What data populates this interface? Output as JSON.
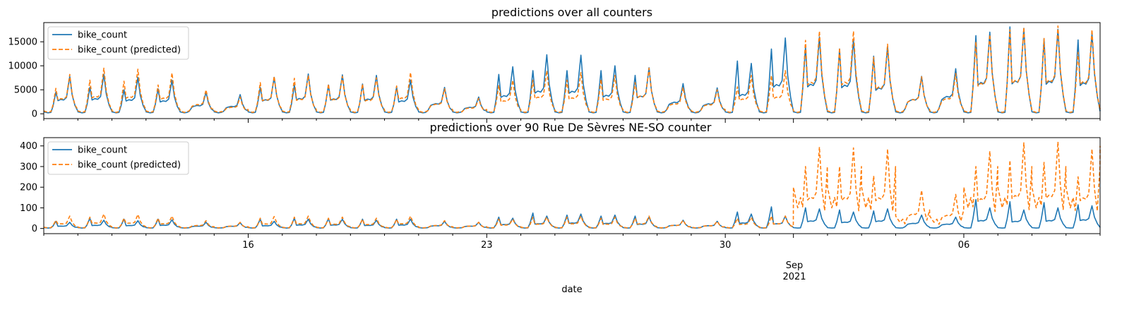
{
  "chart_data": [
    {
      "type": "line",
      "title": "predictions over all counters",
      "xlabel": "",
      "ylabel": "",
      "xlim": [
        "2021-08-10",
        "2021-09-10"
      ],
      "ylim": [
        -1000,
        19000
      ],
      "y_ticks": [
        0,
        5000,
        10000,
        15000
      ],
      "y_tick_labels": [
        "0",
        "5000",
        "10000",
        "15000"
      ],
      "legend": {
        "position": "top-left",
        "entries": [
          "bike_count",
          "bike_count (predicted)"
        ]
      },
      "grid": false,
      "series": [
        {
          "name": "bike_count",
          "color": "#1f77b4",
          "style": "solid",
          "daily": [
            {
              "date": "2021-08-10",
              "am": 4500,
              "pm": 7800,
              "min": 200
            },
            {
              "date": "2021-08-11",
              "am": 5500,
              "pm": 8200,
              "min": 200
            },
            {
              "date": "2021-08-12",
              "am": 5000,
              "pm": 7600,
              "min": 200
            },
            {
              "date": "2021-08-13",
              "am": 5200,
              "pm": 7000,
              "min": 200
            },
            {
              "date": "2021-08-14",
              "am": 0,
              "pm": 4500,
              "min": 200
            },
            {
              "date": "2021-08-15",
              "am": 0,
              "pm": 4000,
              "min": 200
            },
            {
              "date": "2021-08-16",
              "am": 5500,
              "pm": 7600,
              "min": 200
            },
            {
              "date": "2021-08-17",
              "am": 6000,
              "pm": 8300,
              "min": 200
            },
            {
              "date": "2021-08-18",
              "am": 6000,
              "pm": 8100,
              "min": 200
            },
            {
              "date": "2021-08-19",
              "am": 6200,
              "pm": 8000,
              "min": 200
            },
            {
              "date": "2021-08-20",
              "am": 5600,
              "pm": 7000,
              "min": 200
            },
            {
              "date": "2021-08-21",
              "am": 0,
              "pm": 5500,
              "min": 200
            },
            {
              "date": "2021-08-22",
              "am": 0,
              "pm": 3500,
              "min": 200
            },
            {
              "date": "2021-08-23",
              "am": 8200,
              "pm": 9800,
              "min": 200
            },
            {
              "date": "2021-08-24",
              "am": 9000,
              "pm": 12300,
              "min": 200
            },
            {
              "date": "2021-08-25",
              "am": 9000,
              "pm": 12200,
              "min": 200
            },
            {
              "date": "2021-08-26",
              "am": 9000,
              "pm": 10000,
              "min": 200
            },
            {
              "date": "2021-08-27",
              "am": 8000,
              "pm": 9600,
              "min": 200
            },
            {
              "date": "2021-08-28",
              "am": 0,
              "pm": 6300,
              "min": 200
            },
            {
              "date": "2021-08-29",
              "am": 0,
              "pm": 5400,
              "min": 200
            },
            {
              "date": "2021-08-30",
              "am": 11000,
              "pm": 10500,
              "min": 200
            },
            {
              "date": "2021-08-31",
              "am": 13500,
              "pm": 15800,
              "min": 200
            },
            {
              "date": "2021-09-01",
              "am": 14000,
              "pm": 16000,
              "min": 200
            },
            {
              "date": "2021-09-02",
              "am": 13500,
              "pm": 15500,
              "min": 200
            },
            {
              "date": "2021-09-03",
              "am": 12000,
              "pm": 14000,
              "min": 200
            },
            {
              "date": "2021-09-04",
              "am": 0,
              "pm": 7800,
              "min": 200
            },
            {
              "date": "2021-09-05",
              "am": 0,
              "pm": 9400,
              "min": 200
            },
            {
              "date": "2021-09-06",
              "am": 16300,
              "pm": 17000,
              "min": 200
            },
            {
              "date": "2021-09-07",
              "am": 18100,
              "pm": 17800,
              "min": 200
            },
            {
              "date": "2021-09-08",
              "am": 15600,
              "pm": 17600,
              "min": 200
            },
            {
              "date": "2021-09-09",
              "am": 15400,
              "pm": 16800,
              "min": 200
            }
          ]
        },
        {
          "name": "bike_count (predicted)",
          "color": "#ff7f0e",
          "style": "dashed",
          "daily": [
            {
              "date": "2021-08-10",
              "am": 5300,
              "pm": 8200,
              "min": 300
            },
            {
              "date": "2021-08-11",
              "am": 7000,
              "pm": 9500,
              "min": 300
            },
            {
              "date": "2021-08-12",
              "am": 6800,
              "pm": 9300,
              "min": 300
            },
            {
              "date": "2021-08-13",
              "am": 6000,
              "pm": 8500,
              "min": 300
            },
            {
              "date": "2021-08-14",
              "am": 0,
              "pm": 5000,
              "min": 300
            },
            {
              "date": "2021-08-15",
              "am": 0,
              "pm": 3500,
              "min": 300
            },
            {
              "date": "2021-08-16",
              "am": 6500,
              "pm": 7800,
              "min": 300
            },
            {
              "date": "2021-08-17",
              "am": 7400,
              "pm": 8000,
              "min": 300
            },
            {
              "date": "2021-08-18",
              "am": 6200,
              "pm": 7800,
              "min": 300
            },
            {
              "date": "2021-08-19",
              "am": 6200,
              "pm": 7500,
              "min": 300
            },
            {
              "date": "2021-08-20",
              "am": 5800,
              "pm": 8600,
              "min": 300
            },
            {
              "date": "2021-08-21",
              "am": 0,
              "pm": 5200,
              "min": 300
            },
            {
              "date": "2021-08-22",
              "am": 0,
              "pm": 3200,
              "min": 300
            },
            {
              "date": "2021-08-23",
              "am": 6000,
              "pm": 7000,
              "min": 300
            },
            {
              "date": "2021-08-24",
              "am": 7000,
              "pm": 9000,
              "min": 300
            },
            {
              "date": "2021-08-25",
              "am": 7000,
              "pm": 8600,
              "min": 300
            },
            {
              "date": "2021-08-26",
              "am": 7200,
              "pm": 8000,
              "min": 300
            },
            {
              "date": "2021-08-27",
              "am": 6500,
              "pm": 9500,
              "min": 300
            },
            {
              "date": "2021-08-28",
              "am": 0,
              "pm": 5500,
              "min": 300
            },
            {
              "date": "2021-08-29",
              "am": 0,
              "pm": 5000,
              "min": 300
            },
            {
              "date": "2021-08-30",
              "am": 5600,
              "pm": 8000,
              "min": 300
            },
            {
              "date": "2021-08-31",
              "am": 8000,
              "pm": 9000,
              "min": 300
            },
            {
              "date": "2021-09-01",
              "am": 15300,
              "pm": 17200,
              "min": 300
            },
            {
              "date": "2021-09-02",
              "am": 13700,
              "pm": 17200,
              "min": 300
            },
            {
              "date": "2021-09-03",
              "am": 11800,
              "pm": 14500,
              "min": 300
            },
            {
              "date": "2021-09-04",
              "am": 0,
              "pm": 7700,
              "min": 300
            },
            {
              "date": "2021-09-05",
              "am": 0,
              "pm": 8400,
              "min": 300
            },
            {
              "date": "2021-09-06",
              "am": 15000,
              "pm": 16500,
              "min": 300
            },
            {
              "date": "2021-09-07",
              "am": 17500,
              "pm": 18000,
              "min": 300
            },
            {
              "date": "2021-09-08",
              "am": 15700,
              "pm": 18300,
              "min": 300
            },
            {
              "date": "2021-09-09",
              "am": 12800,
              "pm": 17500,
              "min": 300
            }
          ]
        }
      ]
    },
    {
      "type": "line",
      "title": "predictions over 90 Rue De Sèvres NE-SO counter",
      "xlabel": "date",
      "ylabel": "",
      "xlim": [
        "2021-08-10",
        "2021-09-10"
      ],
      "ylim": [
        -25,
        440
      ],
      "y_ticks": [
        0,
        100,
        200,
        300,
        400
      ],
      "y_tick_labels": [
        "0",
        "100",
        "200",
        "300",
        "400"
      ],
      "x_ticks": [
        {
          "date": "2021-08-16",
          "label": "16"
        },
        {
          "date": "2021-08-23",
          "label": "23"
        },
        {
          "date": "2021-08-30",
          "label": "30"
        },
        {
          "date": "2021-09-06",
          "label": "06"
        }
      ],
      "x_secondary_label": {
        "date": "2021-09-01",
        "lines": [
          "Sep",
          "2021"
        ]
      },
      "legend": {
        "position": "top-left",
        "entries": [
          "bike_count",
          "bike_count (predicted)"
        ]
      },
      "grid": false,
      "series": [
        {
          "name": "bike_count",
          "color": "#1f77b4",
          "style": "solid",
          "daily": [
            {
              "date": "2021-08-10",
              "am": 35,
              "pm": 30,
              "min": 2
            },
            {
              "date": "2021-08-11",
              "am": 50,
              "pm": 40,
              "min": 2
            },
            {
              "date": "2021-08-12",
              "am": 45,
              "pm": 38,
              "min": 2
            },
            {
              "date": "2021-08-13",
              "am": 45,
              "pm": 42,
              "min": 2
            },
            {
              "date": "2021-08-14",
              "am": 0,
              "pm": 30,
              "min": 2
            },
            {
              "date": "2021-08-15",
              "am": 0,
              "pm": 28,
              "min": 2
            },
            {
              "date": "2021-08-16",
              "am": 45,
              "pm": 35,
              "min": 2
            },
            {
              "date": "2021-08-17",
              "am": 50,
              "pm": 45,
              "min": 2
            },
            {
              "date": "2021-08-18",
              "am": 48,
              "pm": 45,
              "min": 2
            },
            {
              "date": "2021-08-19",
              "am": 45,
              "pm": 40,
              "min": 2
            },
            {
              "date": "2021-08-20",
              "am": 45,
              "pm": 45,
              "min": 2
            },
            {
              "date": "2021-08-21",
              "am": 0,
              "pm": 35,
              "min": 2
            },
            {
              "date": "2021-08-22",
              "am": 0,
              "pm": 30,
              "min": 2
            },
            {
              "date": "2021-08-23",
              "am": 55,
              "pm": 50,
              "min": 2
            },
            {
              "date": "2021-08-24",
              "am": 75,
              "pm": 60,
              "min": 2
            },
            {
              "date": "2021-08-25",
              "am": 65,
              "pm": 70,
              "min": 2
            },
            {
              "date": "2021-08-26",
              "am": 60,
              "pm": 65,
              "min": 2
            },
            {
              "date": "2021-08-27",
              "am": 60,
              "pm": 55,
              "min": 2
            },
            {
              "date": "2021-08-28",
              "am": 0,
              "pm": 40,
              "min": 2
            },
            {
              "date": "2021-08-29",
              "am": 0,
              "pm": 35,
              "min": 2
            },
            {
              "date": "2021-08-30",
              "am": 80,
              "pm": 70,
              "min": 2
            },
            {
              "date": "2021-08-31",
              "am": 105,
              "pm": 60,
              "min": 2
            },
            {
              "date": "2021-09-01",
              "am": 100,
              "pm": 95,
              "min": 2
            },
            {
              "date": "2021-09-02",
              "am": 90,
              "pm": 80,
              "min": 2
            },
            {
              "date": "2021-09-03",
              "am": 85,
              "pm": 95,
              "min": 2
            },
            {
              "date": "2021-09-04",
              "am": 0,
              "pm": 65,
              "min": 2
            },
            {
              "date": "2021-09-05",
              "am": 0,
              "pm": 55,
              "min": 2
            },
            {
              "date": "2021-09-06",
              "am": 140,
              "pm": 100,
              "min": 2
            },
            {
              "date": "2021-09-07",
              "am": 130,
              "pm": 90,
              "min": 2
            },
            {
              "date": "2021-09-08",
              "am": 125,
              "pm": 100,
              "min": 2
            },
            {
              "date": "2021-09-09",
              "am": 115,
              "pm": 110,
              "min": 2
            }
          ]
        },
        {
          "name": "bike_count (predicted)",
          "color": "#ff7f0e",
          "style": "dashed",
          "daily": [
            {
              "date": "2021-08-10",
              "am": 40,
              "pm": 60,
              "min": 3
            },
            {
              "date": "2021-08-11",
              "am": 55,
              "pm": 70,
              "min": 3
            },
            {
              "date": "2021-08-12",
              "am": 50,
              "pm": 68,
              "min": 3
            },
            {
              "date": "2021-08-13",
              "am": 50,
              "pm": 60,
              "min": 3
            },
            {
              "date": "2021-08-14",
              "am": 0,
              "pm": 38,
              "min": 3
            },
            {
              "date": "2021-08-15",
              "am": 0,
              "pm": 30,
              "min": 3
            },
            {
              "date": "2021-08-16",
              "am": 50,
              "pm": 58,
              "min": 3
            },
            {
              "date": "2021-08-17",
              "am": 55,
              "pm": 60,
              "min": 3
            },
            {
              "date": "2021-08-18",
              "am": 50,
              "pm": 55,
              "min": 3
            },
            {
              "date": "2021-08-19",
              "am": 45,
              "pm": 50,
              "min": 3
            },
            {
              "date": "2021-08-20",
              "am": 45,
              "pm": 60,
              "min": 3
            },
            {
              "date": "2021-08-21",
              "am": 0,
              "pm": 38,
              "min": 3
            },
            {
              "date": "2021-08-22",
              "am": 0,
              "pm": 30,
              "min": 3
            },
            {
              "date": "2021-08-23",
              "am": 45,
              "pm": 45,
              "min": 3
            },
            {
              "date": "2021-08-24",
              "am": 55,
              "pm": 55,
              "min": 3
            },
            {
              "date": "2021-08-25",
              "am": 55,
              "pm": 60,
              "min": 3
            },
            {
              "date": "2021-08-26",
              "am": 50,
              "pm": 55,
              "min": 3
            },
            {
              "date": "2021-08-27",
              "am": 50,
              "pm": 60,
              "min": 3
            },
            {
              "date": "2021-08-28",
              "am": 0,
              "pm": 40,
              "min": 3
            },
            {
              "date": "2021-08-29",
              "am": 0,
              "pm": 35,
              "min": 3
            },
            {
              "date": "2021-08-30",
              "am": 50,
              "pm": 55,
              "min": 3
            },
            {
              "date": "2021-08-31",
              "am": 60,
              "pm": 60,
              "min": 3
            },
            {
              "date": "2021-09-01",
              "am": 300,
              "pm": 395,
              "min": 100
            },
            {
              "date": "2021-09-02",
              "am": 300,
              "pm": 390,
              "min": 100
            },
            {
              "date": "2021-09-03",
              "am": 255,
              "pm": 385,
              "min": 100
            },
            {
              "date": "2021-09-04",
              "am": 0,
              "pm": 185,
              "min": 30
            },
            {
              "date": "2021-09-05",
              "am": 0,
              "pm": 165,
              "min": 30
            },
            {
              "date": "2021-09-06",
              "am": 300,
              "pm": 375,
              "min": 100
            },
            {
              "date": "2021-09-07",
              "am": 330,
              "pm": 415,
              "min": 100
            },
            {
              "date": "2021-09-08",
              "am": 320,
              "pm": 420,
              "min": 100
            },
            {
              "date": "2021-09-09",
              "am": 250,
              "pm": 385,
              "min": 100
            }
          ]
        }
      ]
    }
  ]
}
